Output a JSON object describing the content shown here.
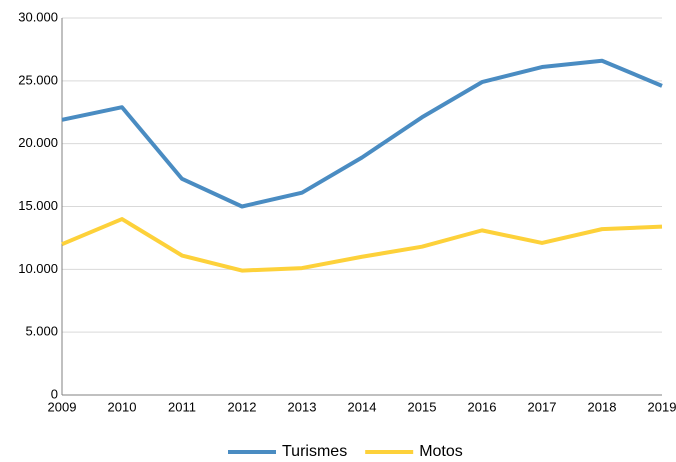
{
  "chart_data": {
    "type": "line",
    "categories": [
      "2009",
      "2010",
      "2011",
      "2012",
      "2013",
      "2014",
      "2015",
      "2016",
      "2017",
      "2018",
      "2019"
    ],
    "series": [
      {
        "name": "Turismes",
        "color": "#4a8cc2",
        "values": [
          21900,
          22900,
          17200,
          15000,
          16100,
          18900,
          22100,
          24900,
          26100,
          26600,
          24600
        ]
      },
      {
        "name": "Motos",
        "color": "#fdd13a",
        "values": [
          12000,
          14000,
          11100,
          9900,
          10100,
          11000,
          11800,
          13100,
          12100,
          13200,
          13400
        ]
      }
    ],
    "ylim": [
      0,
      30000
    ],
    "yticks": [
      0,
      {
        "value": 5000,
        "label": "5.000"
      },
      {
        "value": 10000,
        "label": "10.000"
      },
      {
        "value": 15000,
        "label": "15.000"
      },
      {
        "value": 20000,
        "label": "20.000"
      },
      {
        "value": 25000,
        "label": "25.000"
      },
      {
        "value": 30000,
        "label": "30.000"
      }
    ],
    "grid": true,
    "legend": "bottom"
  }
}
